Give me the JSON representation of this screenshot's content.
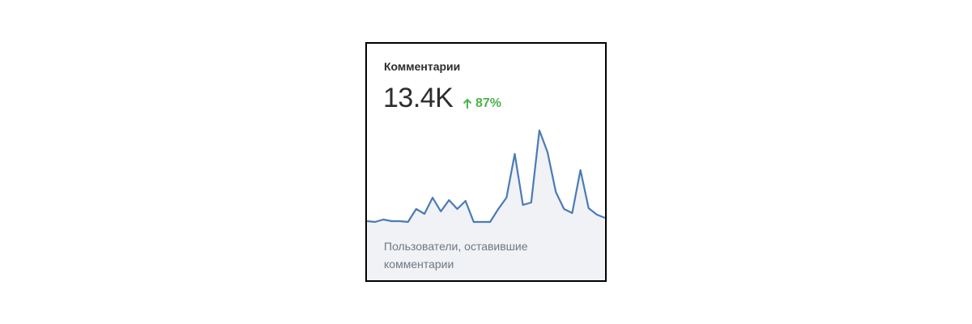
{
  "card": {
    "title": "Комментарии",
    "value": "13.4K",
    "change": "87%",
    "description": "Пользователи, оставившие комментарии",
    "sparkline": {
      "type": "line",
      "color": "#4a7bb7",
      "fill": "#f0f2f5",
      "values": [
        1,
        0,
        3,
        1,
        1,
        0,
        16,
        10,
        30,
        13,
        27,
        16,
        26,
        0,
        0,
        0,
        16,
        30,
        84,
        21,
        24,
        113,
        86,
        37,
        16,
        11,
        64,
        17,
        9,
        5
      ]
    }
  }
}
